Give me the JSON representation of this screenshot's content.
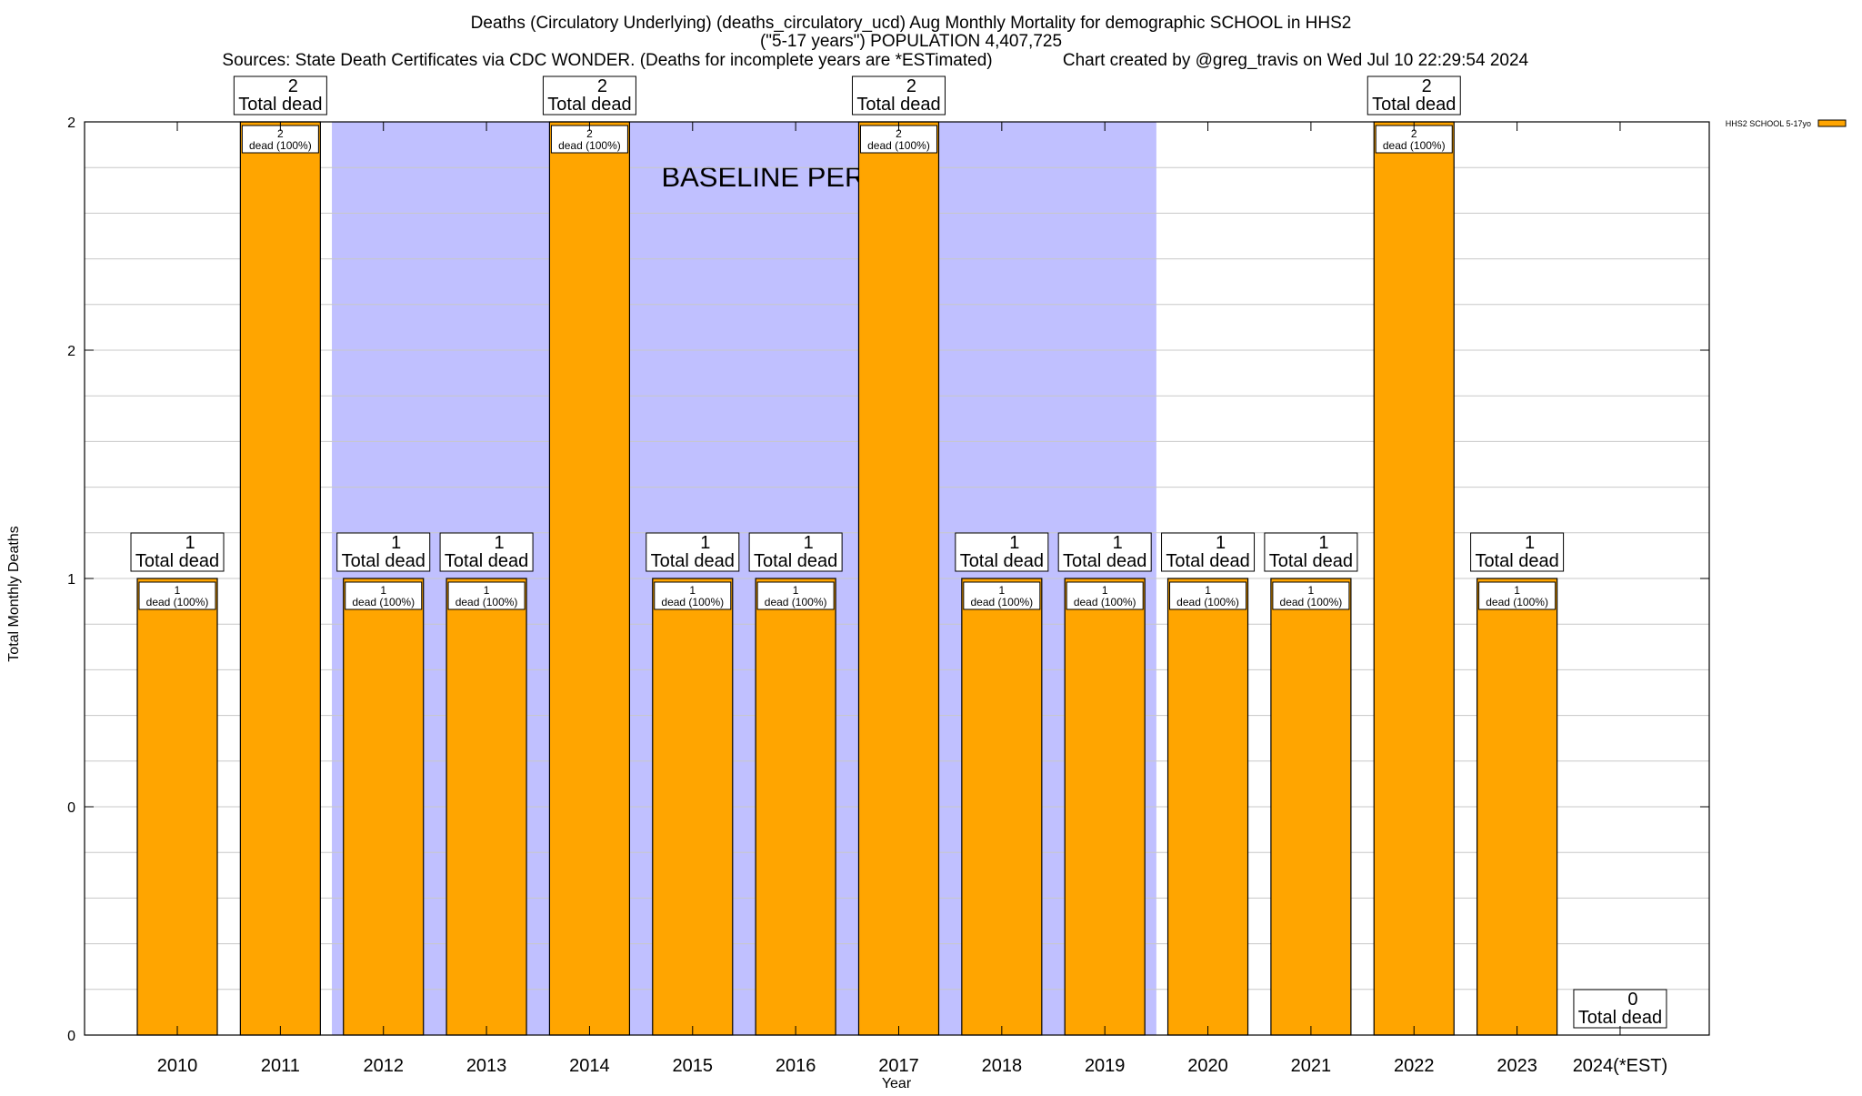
{
  "chart_data": {
    "type": "bar",
    "title_lines": [
      "Deaths (Circulatory Underlying) (deaths_circulatory_ucd) Aug Monthly Mortality for demographic SCHOOL in HHS2",
      "(\"5-17 years\") POPULATION 4,407,725",
      "Sources: State Death Certificates via CDC WONDER. (Deaths for incomplete years are *ESTimated)"
    ],
    "credit": "Chart created by @greg_travis on Wed Jul 10 22:29:54 2024",
    "xlabel": "Year",
    "ylabel": "Total Monthly Deaths",
    "categories": [
      "2010",
      "2011",
      "2012",
      "2013",
      "2014",
      "2015",
      "2016",
      "2017",
      "2018",
      "2019",
      "2020",
      "2021",
      "2022",
      "2023",
      "2024(*EST)"
    ],
    "series": [
      {
        "name": "HHS2 SCHOOL 5-17yo",
        "values": [
          1,
          2,
          1,
          1,
          2,
          1,
          1,
          2,
          1,
          1,
          1,
          1,
          2,
          1,
          0
        ],
        "color": "#ffa500"
      }
    ],
    "bar_labels": [
      "dead (100%)"
    ],
    "total_label": "Total dead",
    "baseline": {
      "label": "BASELINE PERIOD",
      "start": "2012",
      "end": "2019",
      "color": "#c0c0ff"
    },
    "ylim": [
      0,
      2
    ],
    "yticks": [
      {
        "value": 0,
        "label": "0"
      },
      {
        "value": 0.5,
        "label": "0"
      },
      {
        "value": 1,
        "label": "1"
      },
      {
        "value": 1.5,
        "label": "2"
      },
      {
        "value": 2,
        "label": "2"
      }
    ],
    "grid": true,
    "legend_position": "top-right"
  }
}
